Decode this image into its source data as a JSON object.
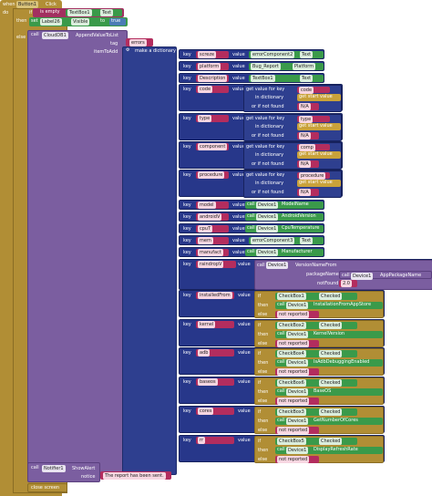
{
  "event": {
    "when": "when",
    "component": "Button1",
    "event_name": "Click",
    "do": "do"
  },
  "if_block": {
    "if": "if",
    "then": "then",
    "else": "else",
    "is_empty": "is empty",
    "textbox": "TextBox1",
    "prop": "Text",
    "set": "set",
    "label": "Label26",
    "visible_prop": "Visible",
    "to": "to",
    "value": "true"
  },
  "append": {
    "call": "call",
    "component": "CloudDB1",
    "method": "AppendValueToList",
    "tag_label": "tag",
    "tag_value": "errors",
    "item_label": "itemToAdd",
    "make_dict": "make a dictionary"
  },
  "pairs": [
    {
      "key": "screze",
      "value_kind": "component",
      "component": "errorComponent2",
      "prop": "Text"
    },
    {
      "key": "platform",
      "value_kind": "text",
      "text": "Bug_Report",
      "prop": "Platform"
    },
    {
      "key": "Description",
      "value_kind": "component",
      "component": "TextBox1",
      "prop": "Text"
    },
    {
      "key": "code",
      "value_kind": "dictget",
      "get_label": "get value for key",
      "get_key": "code",
      "in_dict": "in dictionary",
      "start": "get start value",
      "if_not": "or if not found",
      "fallback": "N/A"
    },
    {
      "key": "type",
      "value_kind": "dictget",
      "get_label": "get value for key",
      "get_key": "type",
      "in_dict": "in dictionary",
      "start": "get start value",
      "if_not": "or if not found",
      "fallback": "N/A"
    },
    {
      "key": "component",
      "value_kind": "dictget",
      "get_label": "get value for key",
      "get_key": "comp",
      "in_dict": "in dictionary",
      "start": "get start value",
      "if_not": "or if not found",
      "fallback": "N/A"
    },
    {
      "key": "procedure",
      "value_kind": "dictget",
      "get_label": "get value for key",
      "get_key": "procedure",
      "in_dict": "in dictionary",
      "start": "get start value",
      "if_not": "or if not found",
      "fallback": "N/A"
    },
    {
      "key": "model",
      "value_kind": "call",
      "call": "call",
      "component": "Device1",
      "prop": "ModelName"
    },
    {
      "key": "androidV",
      "value_kind": "call",
      "call": "call",
      "component": "Device1",
      "prop": "AndroidVersion"
    },
    {
      "key": "cpuT",
      "value_kind": "call",
      "call": "call",
      "component": "Device1",
      "prop": "CpuTemperature"
    },
    {
      "key": "mem",
      "value_kind": "component",
      "component": "errorComponent3",
      "prop": "Text"
    },
    {
      "key": "manufact",
      "value_kind": "call",
      "call": "call",
      "component": "Device1",
      "prop": "Manufacturer"
    }
  ],
  "raindrop": {
    "key": "raindropV",
    "value": "value",
    "call": "call",
    "component": "Device1",
    "method": "VersionNameFrom",
    "package_label": "packageName",
    "pkg_call": "call",
    "pkg_component": "Device1",
    "pkg_prop": "AppPackageName",
    "notfound_label": "notFound",
    "notfound_value": "2.0"
  },
  "cond_pairs": [
    {
      "key": "installedFrom",
      "checkbox": "CheckBox1",
      "prop": "Checked",
      "component": "Device1",
      "call_prop": "InstallationFromAppStore",
      "else_text": "not reported"
    },
    {
      "key": "kernel",
      "checkbox": "CheckBox2",
      "prop": "Checked",
      "component": "Device1",
      "call_prop": "KernelVersion",
      "else_text": "not reported"
    },
    {
      "key": "adb",
      "checkbox": "CheckBox4",
      "prop": "Checked",
      "component": "Device1",
      "call_prop": "IsAdbDebuggingEnabled",
      "else_text": "not reported"
    },
    {
      "key": "baseos",
      "checkbox": "CheckBox6",
      "prop": "Checked",
      "component": "Device1",
      "call_prop": "BaseOS",
      "else_text": "not reported"
    },
    {
      "key": "cores",
      "checkbox": "CheckBox3",
      "prop": "Checked",
      "component": "Device1",
      "call_prop": "GetNumberOfCores",
      "else_text": "not reported"
    },
    {
      "key": "rr",
      "checkbox": "CheckBox5",
      "prop": "Checked",
      "component": "Device1",
      "call_prop": "DisplayRefreshRate",
      "else_text": "not reported"
    }
  ],
  "common": {
    "key": "key",
    "value": "value",
    "if": "if",
    "then": "then",
    "else": "else",
    "call": "call"
  },
  "alert": {
    "call": "call",
    "component": "Notifier1",
    "method": "ShowAlert",
    "notice_label": "notice",
    "notice_text": "The report has been sent."
  },
  "close": {
    "label": "close screen"
  },
  "colors": {
    "event": "#b18e35",
    "dictionary": "#2e3f8f",
    "component": "#3a9a4a",
    "text": "#b32d5e",
    "procedure": "#7b5ea0"
  }
}
